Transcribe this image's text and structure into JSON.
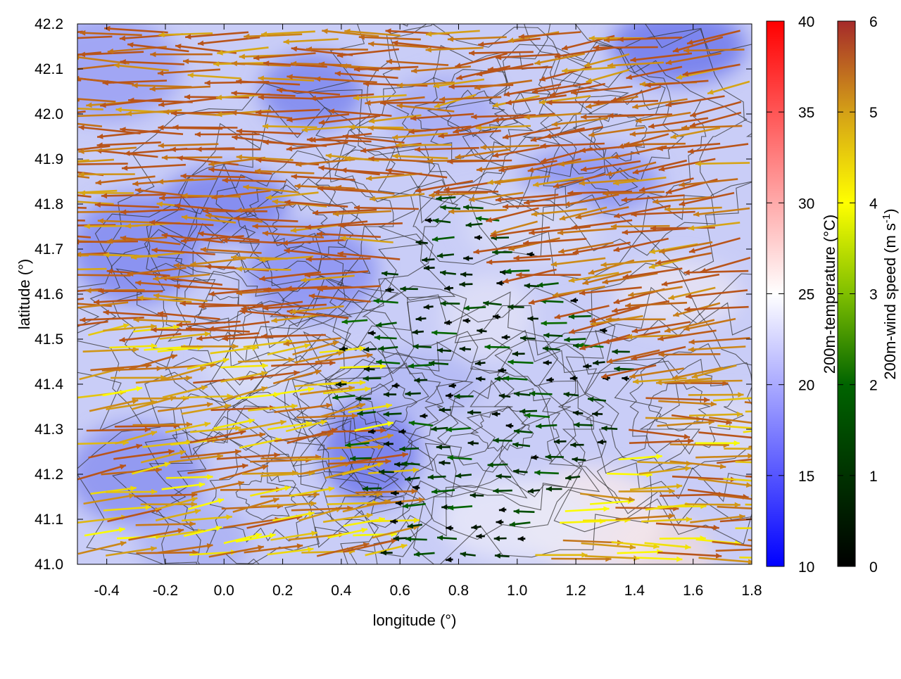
{
  "chart_data": {
    "type": "vector-field-heatmap",
    "title": "",
    "xlabel": "longitude (°)",
    "ylabel": "latitude (°)",
    "xlim": [
      -0.5,
      1.8
    ],
    "ylim": [
      41.0,
      42.2
    ],
    "x_ticks": [
      "-0.4",
      "-0.2",
      "0.0",
      "0.2",
      "0.4",
      "0.6",
      "0.8",
      "1.0",
      "1.2",
      "1.4",
      "1.6",
      "1.8"
    ],
    "x_tick_values": [
      -0.4,
      -0.2,
      0.0,
      0.2,
      0.4,
      0.6,
      0.8,
      1.0,
      1.2,
      1.4,
      1.6,
      1.8
    ],
    "y_ticks": [
      "41.0",
      "41.1",
      "41.2",
      "41.3",
      "41.4",
      "41.5",
      "41.6",
      "41.7",
      "41.8",
      "41.9",
      "42.0",
      "42.1",
      "42.2"
    ],
    "y_tick_values": [
      41.0,
      41.1,
      41.2,
      41.3,
      41.4,
      41.5,
      41.6,
      41.7,
      41.8,
      41.9,
      42.0,
      42.1,
      42.2
    ],
    "temperature_colorbar": {
      "label": "200m-temperature (°C)",
      "range": [
        10,
        40
      ],
      "ticks": [
        "10",
        "15",
        "20",
        "25",
        "30",
        "35",
        "40"
      ],
      "tick_values": [
        10,
        15,
        20,
        25,
        30,
        35,
        40
      ],
      "colors": [
        "#0000ff",
        "#ffffff",
        "#ff0000"
      ]
    },
    "wind_colorbar": {
      "label_main": "200m-wind speed (m s",
      "label_sup": "-1",
      "label_end": ")",
      "range": [
        0,
        6
      ],
      "ticks": [
        "0",
        "1",
        "2",
        "3",
        "4",
        "5",
        "6"
      ],
      "tick_values": [
        0,
        1,
        2,
        3,
        4,
        5,
        6
      ],
      "colors": [
        "#000000",
        "#006400",
        "#7fbf00",
        "#ffff00",
        "#d4a017",
        "#b8541a",
        "#a52a2a"
      ]
    },
    "wind_field": {
      "description_regions": [
        {
          "lon": [
            -0.5,
            0.6
          ],
          "lat": [
            41.5,
            42.2
          ],
          "speed": 6.0,
          "direction_deg": 180
        },
        {
          "lon": [
            -0.5,
            0.4
          ],
          "lat": [
            41.0,
            41.3
          ],
          "speed": 5.0,
          "direction_deg": 20
        },
        {
          "lon": [
            0.8,
            1.2
          ],
          "lat": [
            41.2,
            41.5
          ],
          "speed": 1.0,
          "direction_deg": 180
        },
        {
          "lon": [
            1.3,
            1.8
          ],
          "lat": [
            41.4,
            42.1
          ],
          "speed": 6.0,
          "direction_deg": 200
        },
        {
          "lon": [
            1.2,
            1.8
          ],
          "lat": [
            41.0,
            41.15
          ],
          "speed": 5.0,
          "direction_deg": 0
        }
      ]
    }
  }
}
